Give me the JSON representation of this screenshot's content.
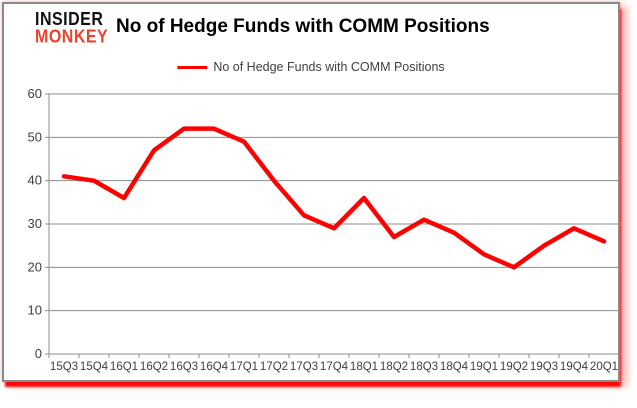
{
  "page": {
    "logo_line1": "INSIDER",
    "logo_line2": "MONKEY",
    "title": "No of Hedge Funds with COMM Positions"
  },
  "legend": {
    "label": "No of Hedge Funds with COMM Positions",
    "swatch_color": "#ff0000"
  },
  "colors": {
    "line": "#ff0000",
    "grid": "#8c8c8c",
    "axis": "#8c8c8c",
    "tick_text": "#3f3f3f",
    "logo_red": "#e8432d",
    "card_border": "#8a8a8a",
    "shadow_red": "#fd0808"
  },
  "chart_data": {
    "type": "line",
    "title": "No of Hedge Funds with COMM Positions",
    "categories": [
      "15Q3",
      "15Q4",
      "16Q1",
      "16Q2",
      "16Q3",
      "16Q4",
      "17Q1",
      "17Q2",
      "17Q3",
      "17Q4",
      "18Q1",
      "18Q2",
      "18Q3",
      "18Q4",
      "19Q1",
      "19Q2",
      "19Q3",
      "19Q4",
      "20Q1"
    ],
    "series": [
      {
        "name": "No of Hedge Funds with COMM Positions",
        "color": "#ff0000",
        "values": [
          41,
          40,
          36,
          47,
          52,
          52,
          49,
          40,
          32,
          29,
          36,
          27,
          31,
          28,
          23,
          20,
          25,
          29,
          26
        ]
      }
    ],
    "xlabel": "",
    "ylabel": "",
    "ylim": [
      0,
      60
    ],
    "yticks": [
      0,
      10,
      20,
      30,
      40,
      50,
      60
    ],
    "grid": "horizontal",
    "legend_position": "top-center"
  }
}
